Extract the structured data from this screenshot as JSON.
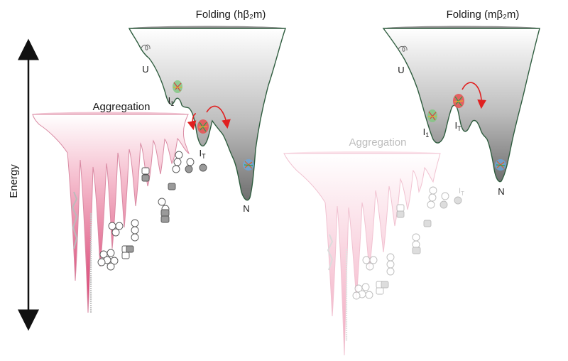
{
  "diagram": {
    "energy_axis_label": "Energy",
    "panels": [
      {
        "id": "h",
        "folding_title": "Folding (hβ₂m)",
        "aggregation_label": "Aggregation",
        "states": {
          "unfolded": "U",
          "intermediate_1": "I",
          "intermediate_1_sub": "1",
          "intermediate_t": "I",
          "intermediate_t_sub": "T",
          "native": "N"
        }
      },
      {
        "id": "m",
        "folding_title": "Folding (mβ₂m)",
        "aggregation_label": "Aggregation",
        "states": {
          "unfolded": "U",
          "intermediate_1": "I",
          "intermediate_1_sub": "1",
          "intermediate_t": "I",
          "intermediate_t_sub": "T",
          "native": "N"
        }
      }
    ],
    "colors": {
      "folding_funnel": "#9e9e9e",
      "funnel_outline": "#2f5d3f",
      "aggregation_funnel": "#e0507a",
      "aggregation_funnel_faded": "#f4b8ca",
      "pathway_arrow": "#e02020",
      "axis": "#111111"
    }
  }
}
